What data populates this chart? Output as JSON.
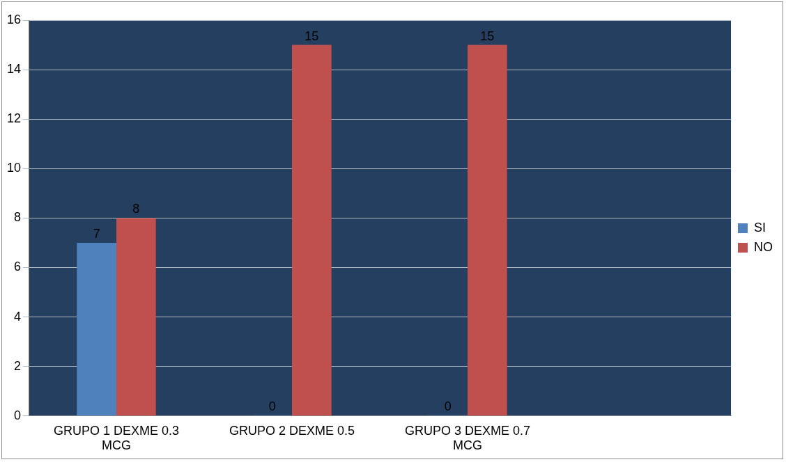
{
  "chart_data": {
    "type": "bar",
    "categories": [
      "GRUPO 1 DEXME 0.3 MCG",
      "GRUPO 2 DEXME 0.5",
      "GRUPO 3 DEXME 0.7 MCG",
      null
    ],
    "series": [
      {
        "name": "SI",
        "color": "#4f81bd",
        "values": [
          7,
          0,
          0,
          null
        ]
      },
      {
        "name": "NO",
        "color": "#c0504d",
        "values": [
          8,
          15,
          15,
          null
        ]
      }
    ],
    "ylim": [
      0,
      16
    ],
    "yticks": [
      0,
      2,
      4,
      6,
      8,
      10,
      12,
      14,
      16
    ],
    "grid": "y",
    "legend": "right",
    "data_labels": true
  }
}
